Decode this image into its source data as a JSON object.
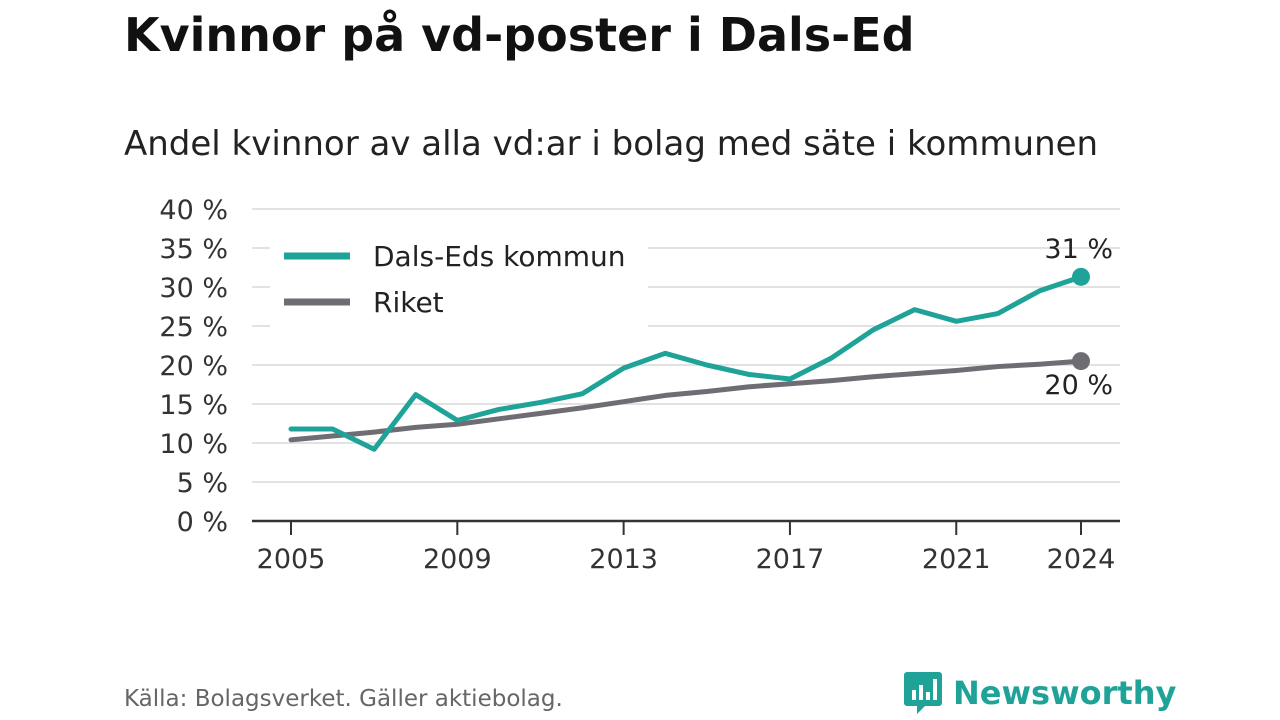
{
  "title": "Kvinnor på vd-poster i Dals-Ed",
  "subtitle": "Andel kvinnor av alla vd:ar i bolag med säte i kommunen",
  "source": "Källa: Bolagsverket. Gäller aktiebolag.",
  "brand": {
    "name": "Newsworthy",
    "icon": "newsworthy-logo-icon"
  },
  "colors": {
    "teal": "#1fa398",
    "gray": "#6f6d74",
    "grid": "#d9d9d9",
    "axis": "#333333"
  },
  "chart_data": {
    "type": "line",
    "title": "Kvinnor på vd-poster i Dals-Ed",
    "subtitle": "Andel kvinnor av alla vd:ar i bolag med säte i kommunen",
    "xlabel": "",
    "ylabel": "",
    "xlim": [
      2005,
      2024
    ],
    "ylim": [
      0,
      40
    ],
    "x_ticks": [
      2005,
      2009,
      2013,
      2017,
      2021,
      2024
    ],
    "x_tick_labels": [
      "2005",
      "2009",
      "2013",
      "2017",
      "2021",
      "2024"
    ],
    "y_ticks": [
      0,
      5,
      10,
      15,
      20,
      25,
      30,
      35,
      40
    ],
    "y_tick_labels": [
      "0 %",
      "5 %",
      "10 %",
      "15 %",
      "20 %",
      "25 %",
      "30 %",
      "35 %",
      "40 %"
    ],
    "grid": true,
    "legend_position": "top-left",
    "x": [
      2005,
      2006,
      2007,
      2008,
      2009,
      2010,
      2011,
      2012,
      2013,
      2014,
      2015,
      2016,
      2017,
      2018,
      2019,
      2020,
      2021,
      2022,
      2023,
      2024
    ],
    "series": [
      {
        "name": "Dals-Eds kommun",
        "color": "#1fa398",
        "values": [
          11.8,
          11.8,
          9.2,
          16.2,
          12.9,
          14.3,
          15.2,
          16.3,
          19.6,
          21.5,
          20.0,
          18.8,
          18.2,
          20.9,
          24.5,
          27.1,
          25.6,
          26.6,
          29.5,
          31.3
        ],
        "end_label": "31 %"
      },
      {
        "name": "Riket",
        "color": "#6f6d74",
        "values": [
          10.4,
          10.9,
          11.4,
          12.0,
          12.4,
          13.1,
          13.8,
          14.5,
          15.3,
          16.1,
          16.6,
          17.2,
          17.6,
          18.0,
          18.5,
          18.9,
          19.3,
          19.8,
          20.1,
          20.5
        ],
        "end_label": "20 %"
      }
    ]
  }
}
